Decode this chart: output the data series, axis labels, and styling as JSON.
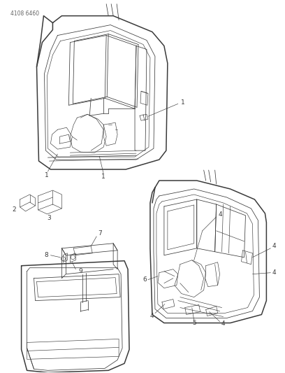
{
  "header": "4108 6460",
  "bg": "#ffffff",
  "lc": "#3a3a3a",
  "lc2": "#555555",
  "figsize": [
    4.08,
    5.33
  ],
  "dpi": 100,
  "lw_outer": 1.1,
  "lw_inner": 0.55,
  "lw_detail": 0.45,
  "fs_label": 6.0,
  "fs_header": 5.5
}
